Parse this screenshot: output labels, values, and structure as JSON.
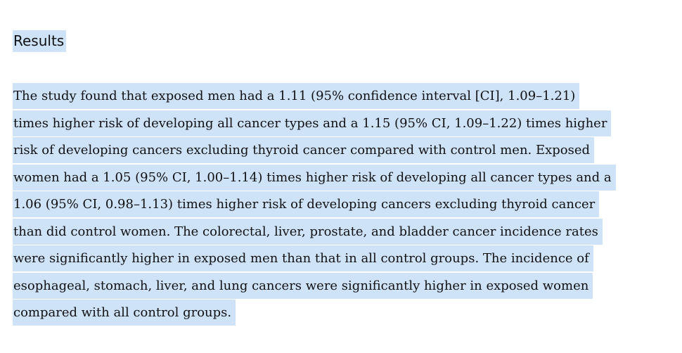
{
  "section": {
    "heading": "Results",
    "lines": [
      "The study found that exposed men had a 1.11 (95% confidence interval [CI], 1.09–1.21)",
      "times higher risk of developing all cancer types and a 1.15 (95% CI, 1.09–1.22) times higher",
      "risk of developing cancers excluding thyroid cancer compared with control men. Exposed",
      "women had a 1.05 (95% CI, 1.00–1.14) times higher risk of developing all cancer types and a",
      "1.06 (95% CI, 0.98–1.13) times higher risk of developing cancers excluding thyroid cancer",
      "than did control women. The colorectal, liver, prostate, and bladder cancer incidence rates",
      "were significantly higher in exposed men than that in all control groups. The incidence of",
      "esophageal, stomach, liver, and lung cancers were significantly higher in exposed women",
      "compared with all control groups."
    ]
  },
  "colors": {
    "selection": "#cfe3f8",
    "text": "#111111",
    "background": "#ffffff"
  }
}
